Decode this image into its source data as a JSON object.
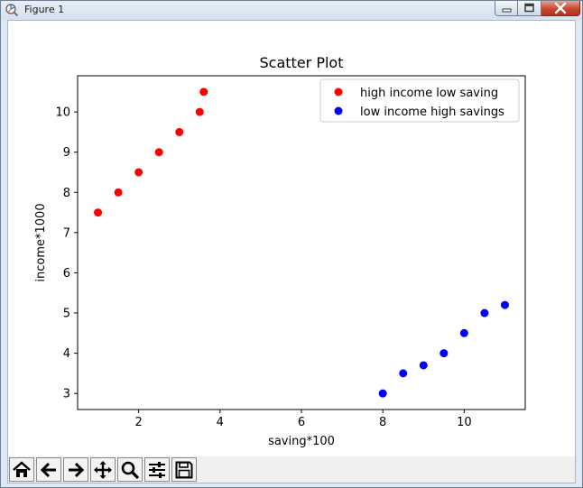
{
  "window": {
    "title": "Figure 1"
  },
  "toolbar": {
    "buttons": [
      {
        "name": "home-button",
        "icon": "home-icon"
      },
      {
        "name": "back-button",
        "icon": "arrow-left-icon"
      },
      {
        "name": "forward-button",
        "icon": "arrow-right-icon"
      },
      {
        "name": "pan-button",
        "icon": "move-icon"
      },
      {
        "name": "zoom-button",
        "icon": "magnifier-icon"
      },
      {
        "name": "configure-subplots-button",
        "icon": "sliders-icon"
      },
      {
        "name": "save-button",
        "icon": "floppy-disk-icon"
      }
    ]
  },
  "chart_data": {
    "type": "scatter",
    "title": "Scatter Plot",
    "xlabel": "saving*100",
    "ylabel": "income*1000",
    "xlim": [
      0.5,
      11.5
    ],
    "ylim": [
      2.6,
      10.9
    ],
    "xticks": [
      2,
      4,
      6,
      8,
      10
    ],
    "yticks": [
      3,
      4,
      5,
      6,
      7,
      8,
      9,
      10
    ],
    "grid": false,
    "legend_position": "top-right",
    "series": [
      {
        "name": "high income low saving",
        "color": "#ff0000",
        "x": [
          1,
          1.5,
          2,
          2.5,
          3,
          3.5,
          3.6
        ],
        "y": [
          7.5,
          8,
          8.5,
          9,
          9.5,
          10,
          10.5
        ]
      },
      {
        "name": "low income high savings",
        "color": "#0000ff",
        "x": [
          8,
          8.5,
          9,
          9.5,
          10,
          10.5,
          11
        ],
        "y": [
          3,
          3.5,
          3.7,
          4,
          4.5,
          5,
          5.2
        ]
      }
    ]
  }
}
